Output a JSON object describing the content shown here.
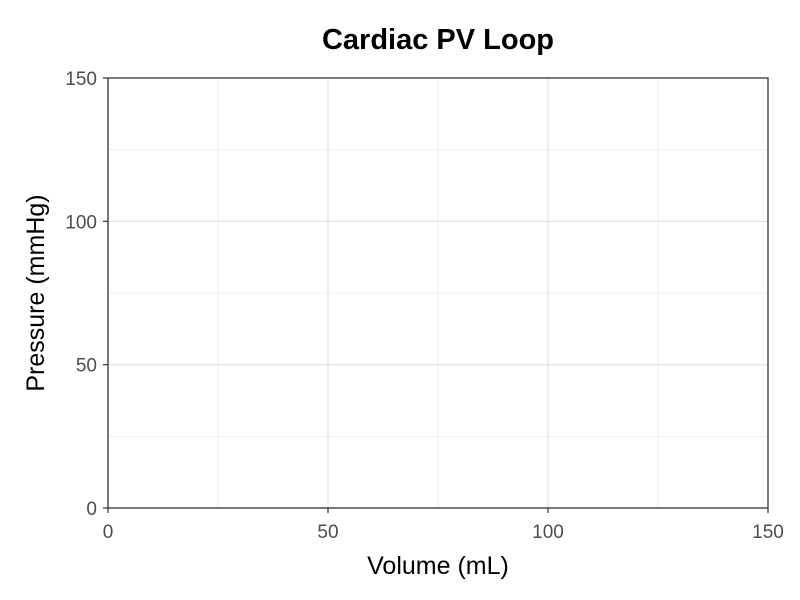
{
  "chart_data": {
    "type": "line",
    "title": "Cardiac PV Loop",
    "xlabel": "Volume (mL)",
    "ylabel": "Pressure (mmHg)",
    "xlim": [
      0,
      150
    ],
    "ylim": [
      0,
      150
    ],
    "x_ticks": [
      0,
      50,
      100,
      150
    ],
    "y_ticks": [
      0,
      50,
      100,
      150
    ],
    "x_minor_ticks": [
      25,
      75,
      125
    ],
    "y_minor_ticks": [
      25,
      75,
      125
    ],
    "grid": true,
    "legend": "none",
    "series": [],
    "colors": {
      "grid_major": "#dcdcdc",
      "grid_minor": "#ededed",
      "axis": "#333333",
      "tick_text": "#4d4d4d"
    }
  }
}
